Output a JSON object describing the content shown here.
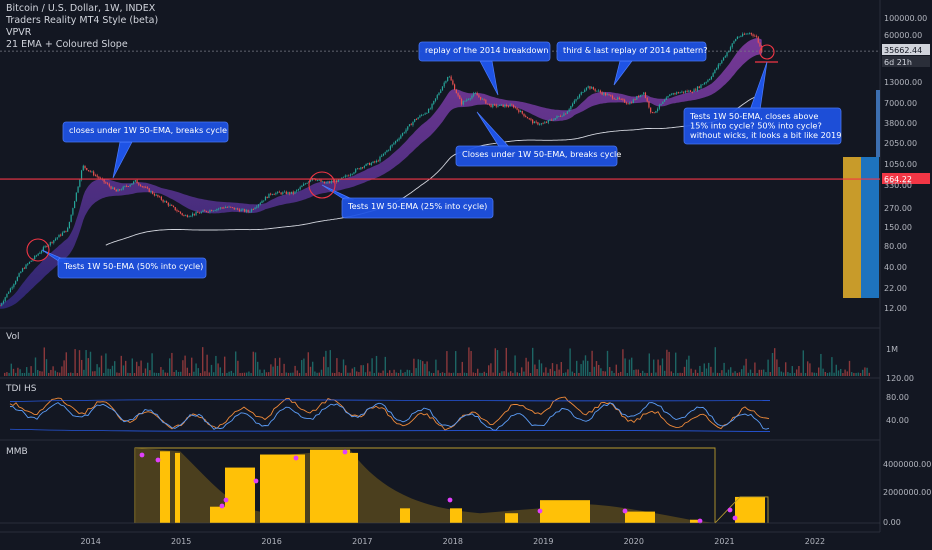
{
  "header": {
    "symbol_line": "Bitcoin / U.S. Dollar, 1W, INDEX",
    "indicators": [
      "Traders Reality MT4 Style (beta)",
      "VPVR",
      "21 EMA + Coloured Slope"
    ]
  },
  "price_axis": {
    "ticks": [
      "100000.00",
      "60000.00",
      "35662.44",
      "6d 21h",
      "13000.00",
      "7000.00",
      "3800.00",
      "2050.00",
      "1050.00",
      "664.22",
      "330.00",
      "270.00",
      "150.00",
      "80.00",
      "40.00",
      "22.00",
      "12.00"
    ],
    "current_price": "35662.44",
    "countdown": "6d 21h",
    "level_price": "664.22"
  },
  "vol_pane": {
    "label": "Vol",
    "tick": "1M"
  },
  "tdi_pane": {
    "label": "TDI HS",
    "ticks": [
      "120.00",
      "80.00",
      "40.00"
    ]
  },
  "mmb_pane": {
    "label": "MMB",
    "ticks": [
      "4000000.00",
      "2000000.00",
      "0.00"
    ]
  },
  "time_axis": [
    "2014",
    "2015",
    "2016",
    "2017",
    "2018",
    "2019",
    "2020",
    "2021",
    "2022"
  ],
  "annotations": [
    "closes under 1W 50-EMA, breaks cycle",
    "Tests 1W 50-EMA (50% into cycle)",
    "Tests 1W 50-EMA (25% into cycle)",
    "replay of the 2014 breakdown",
    "Closes under 1W 50-EMA, breaks cycle",
    "third & last replay of 2014 pattern?",
    "Tests 1W 50-EMA, closes above",
    "15% into cycle? 50% into cycle?",
    "without wicks, it looks a bit like 2019"
  ],
  "colors": {
    "background": "#131722",
    "annotation_fill": "#1e53e5",
    "annotation_border": "#4c7dff",
    "level_line": "#f23645",
    "ema_band": "#7b3fbf",
    "long_ema": "#d1d4dc",
    "mmb_fill": "#ffc107",
    "mmb_dark": "#5a4a1e",
    "vpvr_gold": "#c89b2a",
    "vpvr_blue": "#1e73be"
  },
  "chart_data": {
    "type": "line",
    "title": "Bitcoin / U.S. Dollar, 1W, INDEX",
    "xlabel": "",
    "ylabel": "",
    "y_scale": "log",
    "ylim": [
      10,
      100000
    ],
    "xlim": [
      "2013-01-01",
      "2022-09-01"
    ],
    "series": [
      {
        "name": "",
        "x": [
          "2013-01-01",
          "2013-04-01",
          "2013-07-01",
          "2013-10-01",
          "2013-12-01",
          "2014-02-01",
          "2014-04-15",
          "2014-07-01",
          "2014-10-01",
          "2015-01-15",
          "2015-04-01",
          "2015-07-01",
          "2015-10-01",
          "2016-01-01",
          "2016-04-01",
          "2016-06-15",
          "2016-08-01",
          "2016-10-01",
          "2017-01-01",
          "2017-03-01",
          "2017-05-01",
          "2017-08-01",
          "2017-10-01",
          "2017-12-15",
          "2018-02-05",
          "2018-04-01",
          "2018-06-01",
          "2018-09-01",
          "2018-11-25",
          "2019-01-01",
          "2019-04-01",
          "2019-06-26",
          "2019-09-01",
          "2019-12-15",
          "2020-02-10",
          "2020-03-15",
          "2020-06-01",
          "2020-09-01",
          "2020-11-01",
          "2021-01-01",
          "2021-02-20",
          "2021-04-14",
          "2021-05-10",
          "2021-06-01"
        ],
        "values": [
          13,
          40,
          80,
          140,
          1000,
          700,
          450,
          620,
          380,
          210,
          240,
          280,
          240,
          430,
          430,
          700,
          580,
          640,
          990,
          1150,
          1900,
          4200,
          5800,
          17000,
          7000,
          9500,
          6500,
          6500,
          3800,
          3700,
          5200,
          12000,
          9500,
          7000,
          10000,
          5000,
          9500,
          10500,
          15000,
          30000,
          55000,
          63000,
          56000,
          35662
        ]
      }
    ],
    "annotations": [
      "closes under 1W 50-EMA, breaks cycle",
      "Tests 1W 50-EMA (50% into cycle)",
      "Tests 1W 50-EMA (25% into cycle)",
      "replay of the 2014 breakdown",
      "Closes under 1W 50-EMA, breaks cycle",
      "third & last replay of 2014 pattern?",
      "Tests 1W 50-EMA, closes above 15% into cycle? 50% into cycle? without wicks, it looks a bit like 2019"
    ],
    "horizontal_line": 664.22,
    "last_price": 35662.44,
    "grid": false,
    "legend": "none"
  }
}
